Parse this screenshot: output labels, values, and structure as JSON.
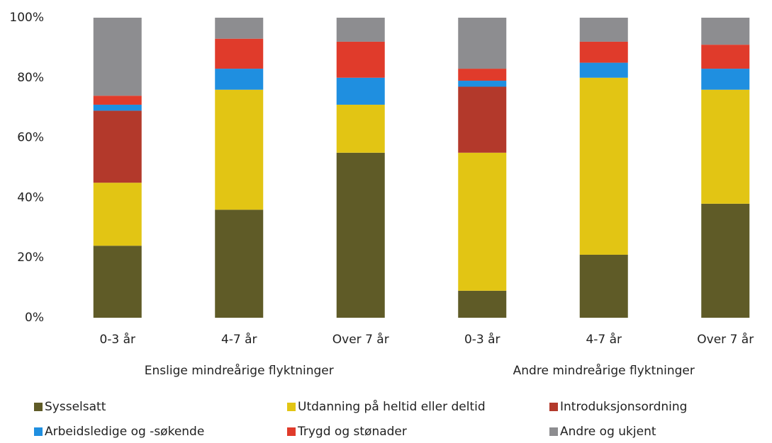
{
  "chart_data": {
    "type": "stacked_bar",
    "categories": [
      "0-3 år",
      "4-7 år",
      "Over 7 år",
      "0-3 år",
      "4-7 år",
      "Over 7 år"
    ],
    "group_labels": [
      "Enslige mindreårige flyktninger",
      "Andre mindreårige flyktninger"
    ],
    "series": [
      {
        "name": "Sysselsatt",
        "color": "#5f5b27",
        "values": [
          24,
          36,
          55,
          9,
          21,
          38
        ]
      },
      {
        "name": "Utdanning på heltid eller deltid",
        "color": "#e2c514",
        "values": [
          21,
          40,
          16,
          46,
          59,
          38
        ]
      },
      {
        "name": "Introduksjonsordning",
        "color": "#b3392b",
        "values": [
          24,
          0,
          0,
          22,
          0,
          0
        ]
      },
      {
        "name": "Arbeidsledige og -søkende",
        "color": "#1f8fe0",
        "values": [
          2,
          7,
          9,
          2,
          5,
          7
        ]
      },
      {
        "name": "Trygd og stønader",
        "color": "#e03b2b",
        "values": [
          3,
          10,
          12,
          4,
          7,
          8
        ]
      },
      {
        "name": "Andre og ukjent",
        "color": "#8d8d90",
        "values": [
          26,
          7,
          8,
          17,
          8,
          9
        ]
      }
    ],
    "ylim": [
      0,
      100
    ],
    "yticks": [
      {
        "value": 0,
        "label": "0%"
      },
      {
        "value": 20,
        "label": "20%"
      },
      {
        "value": 40,
        "label": "40%"
      },
      {
        "value": 60,
        "label": "60%"
      },
      {
        "value": 80,
        "label": "80%"
      },
      {
        "value": 100,
        "label": "100%"
      }
    ],
    "grid": false,
    "legend": "bottom"
  }
}
